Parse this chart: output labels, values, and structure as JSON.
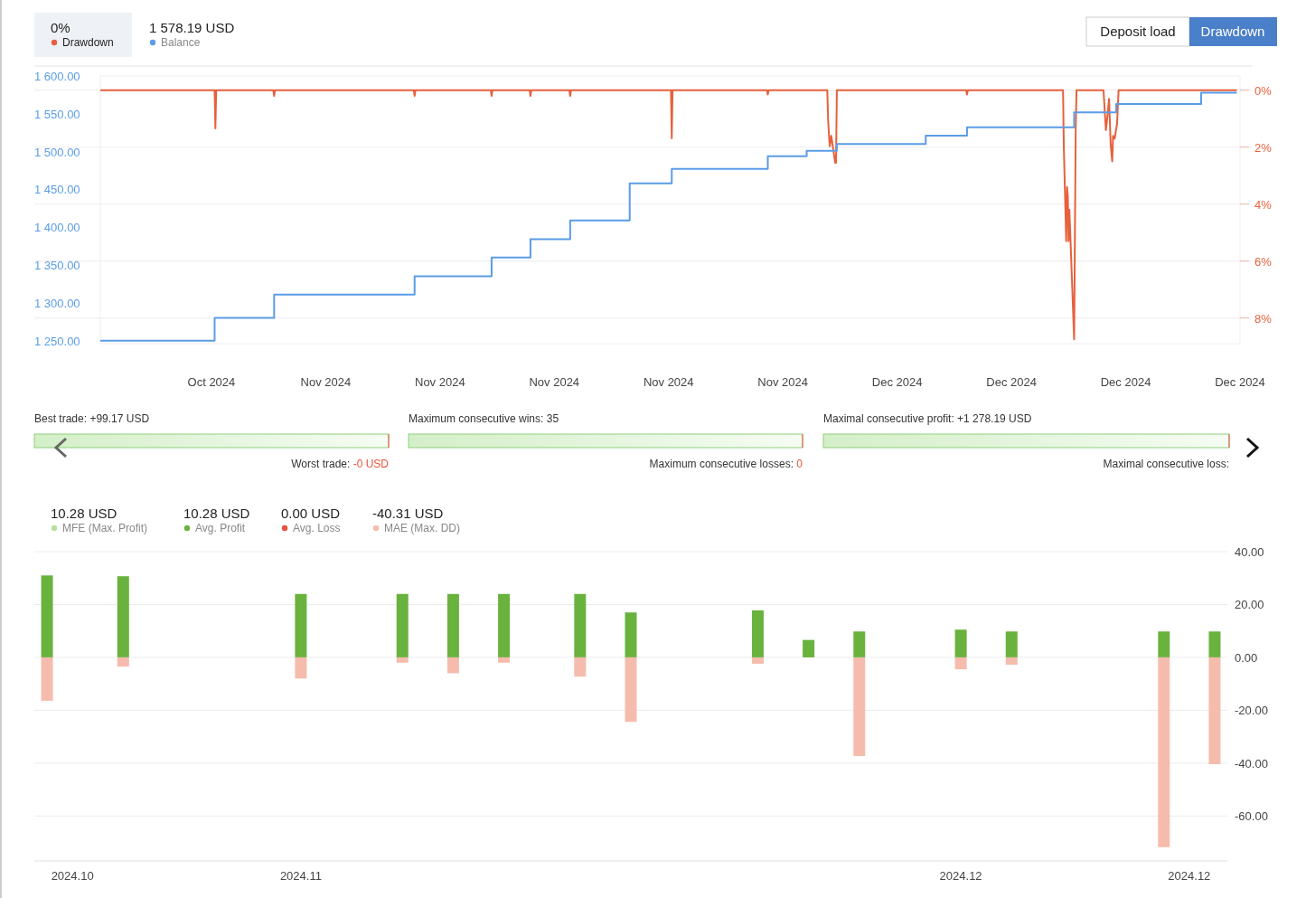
{
  "chart_data": [
    {
      "type": "line",
      "xlim": [
        "2024-10-24T04:00",
        "2024-12-23T00:00"
      ],
      "xticks": [
        {
          "value": "2024-10-30",
          "label": "Oct 2024"
        },
        {
          "value": "2024-11-05",
          "label": "Nov 2024"
        },
        {
          "value": "2024-11-11",
          "label": "Nov 2024"
        },
        {
          "value": "2024-11-17",
          "label": "Nov 2024"
        },
        {
          "value": "2024-11-23",
          "label": "Nov 2024"
        },
        {
          "value": "2024-11-29",
          "label": "Nov 2024"
        },
        {
          "value": "2024-12-05",
          "label": "Dec 2024"
        },
        {
          "value": "2024-12-11",
          "label": "Dec 2024"
        },
        {
          "value": "2024-12-17",
          "label": "Dec 2024"
        },
        {
          "value": "2024-12-23",
          "label": "Dec 2024"
        }
      ],
      "ylim": [
        1246,
        1600
      ],
      "yticks": [
        {
          "value": 1250,
          "label": "1 250.00"
        },
        {
          "value": 1300,
          "label": "1 300.00"
        },
        {
          "value": 1350,
          "label": "1 350.00"
        },
        {
          "value": 1400,
          "label": "1 400.00"
        },
        {
          "value": 1450,
          "label": "1 450.00"
        },
        {
          "value": 1500,
          "label": "1 500.00"
        },
        {
          "value": 1550,
          "label": "1 550.00"
        },
        {
          "value": 1600,
          "label": "1 600.00"
        }
      ],
      "y2lim": [
        8.9,
        -0.5
      ],
      "y2ticks": [
        {
          "value": 0,
          "label": "0%"
        },
        {
          "value": 2,
          "label": "2%"
        },
        {
          "value": 4,
          "label": "4%"
        },
        {
          "value": 6,
          "label": "6%"
        },
        {
          "value": 8,
          "label": "8%"
        }
      ],
      "grid": "y2",
      "legend": "top left",
      "annotations": [
        "0%",
        "1 578.19 USD",
        "Deposit load",
        "Drawdown"
      ],
      "series": [
        {
          "name": "Drawdown",
          "color": "#e8603c",
          "axis": "y2",
          "x": [
            "2024-10-24T04:00",
            "2024-10-30T04:00",
            "2024-10-30T05:00",
            "2024-10-30T06:00",
            "2024-11-02T06:00",
            "2024-11-02T07:00",
            "2024-11-02T08:00",
            "2024-11-09T15:00",
            "2024-11-09T16:00",
            "2024-11-09T17:00",
            "2024-11-13T16:00",
            "2024-11-13T17:00",
            "2024-11-13T18:00",
            "2024-11-15T17:00",
            "2024-11-15T18:00",
            "2024-11-15T19:00",
            "2024-11-17T19:00",
            "2024-11-17T20:00",
            "2024-11-17T21:00",
            "2024-11-23T03:00",
            "2024-11-23T04:00",
            "2024-11-23T05:00",
            "2024-11-28T04:00",
            "2024-11-28T05:00",
            "2024-11-28T06:00",
            "2024-12-01T08:00",
            "2024-12-01T09:00",
            "2024-12-01T11:00",
            "2024-12-01T13:00",
            "2024-12-01T15:00",
            "2024-12-01T18:00",
            "2024-12-01T19:00",
            "2024-12-01T20:00",
            "2024-12-08T15:00",
            "2024-12-08T16:00",
            "2024-12-08T17:00",
            "2024-12-13T17:00",
            "2024-12-13T18:00",
            "2024-12-13T21:00",
            "2024-12-13T22:00",
            "2024-12-13T23:00",
            "2024-12-14T00:00",
            "2024-12-14T01:00",
            "2024-12-14T07:00",
            "2024-12-14T08:00",
            "2024-12-14T09:00",
            "2024-12-14T10:00",
            "2024-12-15T20:00",
            "2024-12-15T23:00",
            "2024-12-16T01:00",
            "2024-12-16T03:00",
            "2024-12-16T05:00",
            "2024-12-16T07:00",
            "2024-12-16T08:00",
            "2024-12-16T10:00",
            "2024-12-16T13:00",
            "2024-12-16T15:00",
            "2024-12-22T20:00"
          ],
          "values": [
            0,
            0,
            1.34,
            0,
            0,
            0.2,
            0,
            0,
            0.2,
            0,
            0,
            0.2,
            0,
            0,
            0.2,
            0,
            0,
            0.2,
            0,
            0,
            1.69,
            0,
            0,
            0.15,
            0,
            0,
            1.05,
            1.97,
            1.6,
            2.0,
            2.55,
            2.55,
            0,
            0,
            0.15,
            0,
            0,
            2.0,
            5.3,
            3.4,
            3.7,
            5.3,
            4.2,
            8.75,
            5.0,
            1.3,
            0,
            0,
            1.4,
            0.9,
            0.3,
            1.9,
            2.5,
            1.6,
            1.7,
            1.2,
            0,
            0
          ]
        },
        {
          "name": "Balance",
          "type": "step",
          "color": "#5b9ce6",
          "x": [
            "2024-10-24T04:00",
            "2024-10-30T04:00",
            "2024-11-02T07:00",
            "2024-11-09T16:00",
            "2024-11-13T17:00",
            "2024-11-15T18:00",
            "2024-11-17T20:00",
            "2024-11-20T23:00",
            "2024-11-23T04:00",
            "2024-11-28T05:00",
            "2024-11-30T06:00",
            "2024-12-01T20:00",
            "2024-12-06T12:00",
            "2024-12-08T16:00",
            "2024-12-14T07:00",
            "2024-12-16T12:00",
            "2024-12-20T23:00",
            "2024-12-22T20:00"
          ],
          "values": [
            1250,
            1280,
            1311,
            1335,
            1360,
            1384,
            1409,
            1458,
            1477,
            1494,
            1501,
            1510,
            1521,
            1532,
            1552,
            1563,
            1578,
            1578
          ]
        }
      ]
    },
    {
      "type": "other",
      "annotations": [
        "Best trade: +99.17 USD",
        "Worst trade: -0 USD",
        "Maximum consecutive wins: 35",
        "Maximum consecutive losses: 0",
        "Maximal consecutive profit: +1 278.19 USD",
        "Maximal consecutive loss:"
      ]
    },
    {
      "type": "bar",
      "stacked": true,
      "categories": [
        null,
        "2024.10",
        null,
        null,
        null,
        null,
        null,
        null,
        null,
        null,
        "2024.11",
        null,
        null,
        null,
        null,
        null,
        null,
        null,
        null,
        null,
        null,
        null,
        null,
        null,
        null,
        null,
        null,
        null,
        null,
        null,
        null,
        null,
        null,
        null,
        null,
        null,
        "2024.12",
        null,
        null,
        null,
        null,
        null,
        null,
        null,
        null,
        "2024.12",
        null
      ],
      "ylim": [
        -77,
        40
      ],
      "yticks": [
        {
          "value": 40,
          "label": "40.00"
        },
        {
          "value": 20,
          "label": "20.00"
        },
        {
          "value": 0,
          "label": "0.00"
        },
        {
          "value": -20,
          "label": "-20.00"
        },
        {
          "value": -40,
          "label": "-40.00"
        },
        {
          "value": -60,
          "label": "-60.00"
        }
      ],
      "grid": "y",
      "legend": "top left",
      "annotations": [
        "10.28 USD",
        "MFE (Max. Profit)",
        "10.28 USD",
        "0.00 USD",
        "Avg. Loss",
        "-40.31 USD"
      ],
      "series": [
        {
          "name": "Avg. Profit",
          "color": "#6ab23e",
          "values": [
            31,
            null,
            null,
            30.7,
            null,
            null,
            null,
            null,
            null,
            null,
            24,
            null,
            null,
            null,
            24,
            null,
            24,
            null,
            24,
            null,
            null,
            24,
            null,
            17,
            null,
            null,
            null,
            null,
            17.8,
            null,
            6.6,
            null,
            9.8,
            null,
            null,
            null,
            10.5,
            null,
            9.8,
            null,
            null,
            null,
            null,
            null,
            9.8,
            null,
            9.8
          ]
        },
        {
          "name": "MAE (Max. DD)",
          "color": "#f5bcad",
          "values": [
            -16.4,
            null,
            null,
            -3.5,
            null,
            null,
            null,
            null,
            null,
            null,
            -8,
            null,
            null,
            null,
            -2,
            null,
            -6,
            null,
            -2,
            null,
            null,
            -7.3,
            null,
            -24.4,
            null,
            null,
            null,
            null,
            -2.4,
            null,
            null,
            null,
            -37.3,
            null,
            null,
            null,
            -4.5,
            null,
            -2.8,
            null,
            null,
            null,
            null,
            null,
            -71.8,
            null,
            -40.4
          ]
        }
      ]
    }
  ]
}
